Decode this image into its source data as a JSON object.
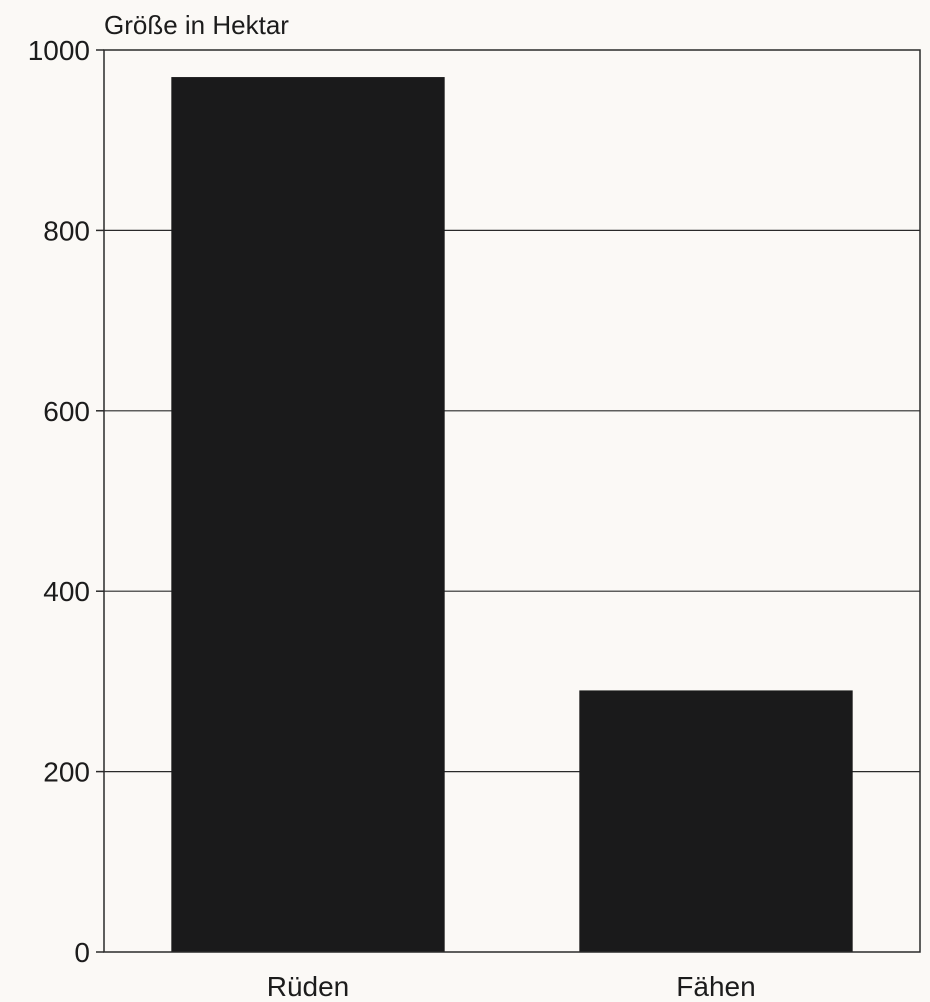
{
  "chart_data": {
    "type": "bar",
    "ylabel": "Größe in Hektar",
    "xlabel": "",
    "categories": [
      "Rüden",
      "Fähen"
    ],
    "values": [
      970,
      290
    ],
    "ylim": [
      0,
      1000
    ],
    "yticks": [
      0,
      200,
      400,
      600,
      800,
      1000
    ],
    "ytick_labels": [
      "0",
      "200",
      "400",
      "600",
      "800",
      "1000"
    ],
    "grid": true,
    "legend": "none",
    "colors": {
      "bar": "#1a1a1b",
      "axis": "#2a2a2a",
      "grid": "#2a2a2a",
      "background": "#fbf9f6"
    }
  }
}
